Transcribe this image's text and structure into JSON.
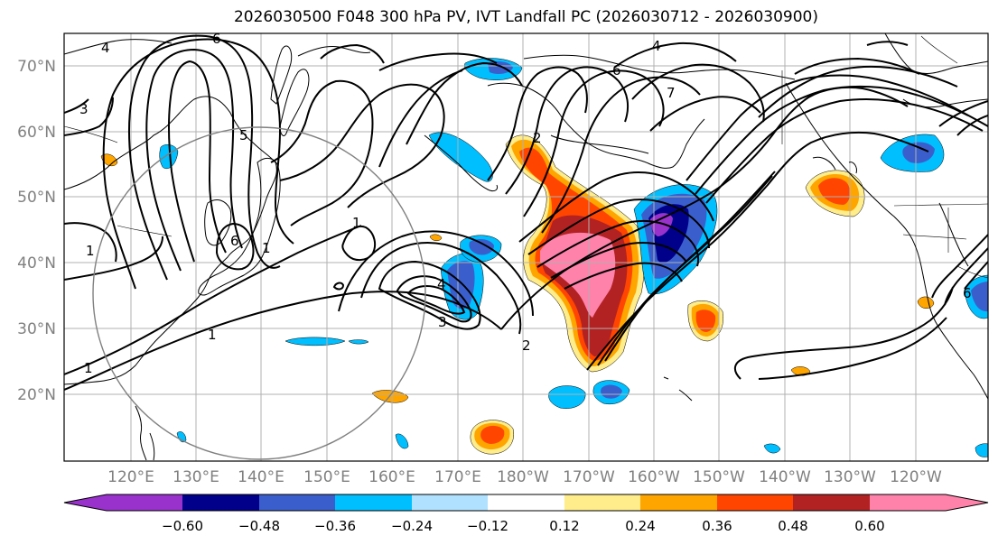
{
  "title": "2026030500 F048 300 hPa PV, IVT Landfall PC (2026030712 - 2026030900)",
  "lat_ticks": [
    "70°N",
    "60°N",
    "50°N",
    "40°N",
    "30°N",
    "20°N"
  ],
  "lon_ticks": [
    "120°E",
    "130°E",
    "140°E",
    "150°E",
    "160°E",
    "170°E",
    "180°W",
    "170°W",
    "160°W",
    "150°W",
    "140°W",
    "130°W",
    "120°W"
  ],
  "colorbar": {
    "colors": [
      "#9932cc",
      "#00008b",
      "#3a5fcd",
      "#00bfff",
      "#b0e2ff",
      "#ffffff",
      "#ffec8b",
      "#ffa500",
      "#ff4500",
      "#b22222",
      "#ff82ab"
    ],
    "labels": [
      "−0.60",
      "−0.48",
      "−0.36",
      "−0.24",
      "−0.12",
      "0.12",
      "0.24",
      "0.36",
      "0.48",
      "0.60"
    ]
  },
  "contour_labels": [
    "4",
    "6",
    "4",
    "6",
    "7",
    "3",
    "5",
    "1",
    "6",
    "1",
    "1",
    "1",
    "1",
    "4",
    "3",
    "2",
    "2",
    "6"
  ]
}
